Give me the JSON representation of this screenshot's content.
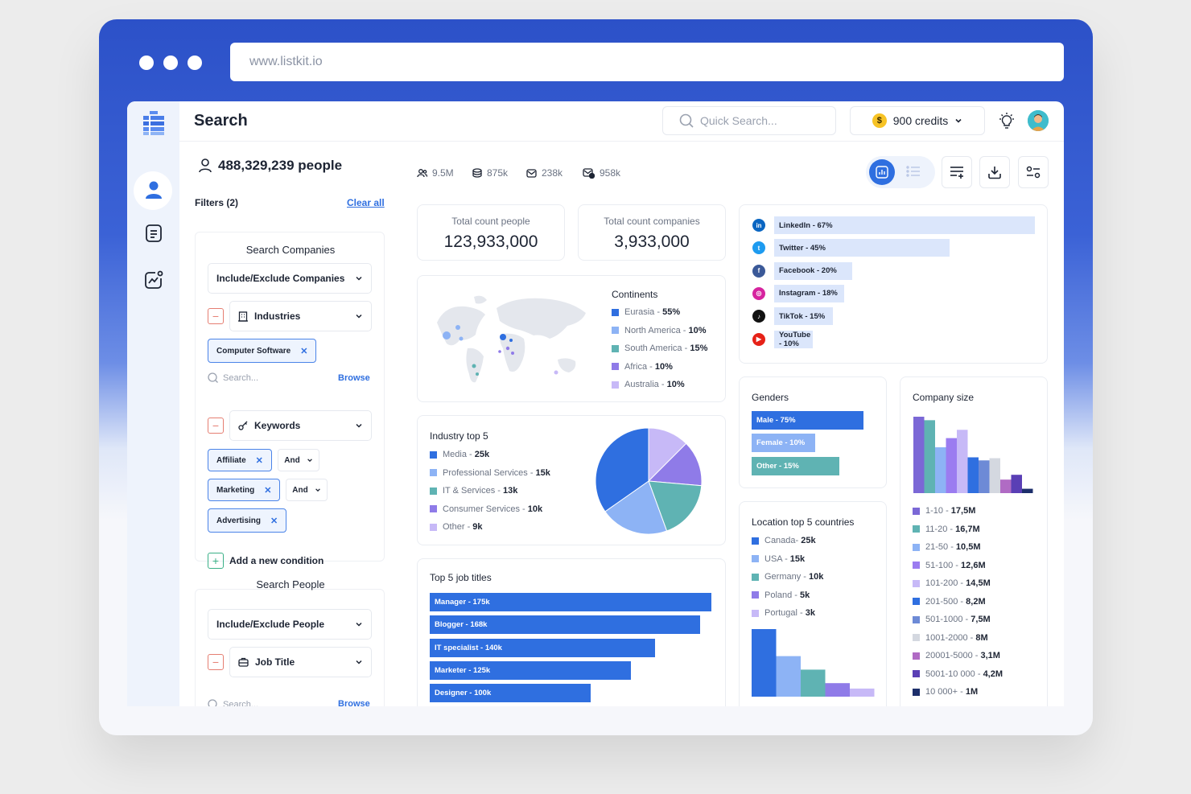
{
  "browser": {
    "url": "www.listkit.io"
  },
  "header": {
    "title": "Search",
    "quick_search_placeholder": "Quick Search...",
    "credits_label": "900 credits",
    "coin_symbol": "$"
  },
  "sidebar_icons": [
    "logo-icon",
    "person-icon",
    "list-icon",
    "analytics-icon"
  ],
  "filters": {
    "people_count": "488,329,239 people",
    "filters_label": "Filters (2)",
    "clear_all": "Clear all",
    "companies": {
      "section_title": "Search Companies",
      "include_exclude": "Include/Exclude Companies",
      "industries": "Industries",
      "industry_tag": "Computer Software",
      "search_placeholder": "Search...",
      "browse": "Browse",
      "keywords": "Keywords",
      "keyword_tags": [
        "Affiliate",
        "Marketing",
        "Advertising"
      ],
      "and_label": "And",
      "add_condition": "Add a new condition"
    },
    "people": {
      "section_title": "Search People",
      "include_exclude": "Include/Exclude People",
      "job_title": "Job Title",
      "search_placeholder": "Search...",
      "browse": "Browse"
    }
  },
  "stats": [
    "9.5M",
    "875k",
    "238k",
    "958k"
  ],
  "totals": {
    "people_label": "Total count people",
    "people_value": "123,933,000",
    "companies_label": "Total count companies",
    "companies_value": "3,933,000"
  },
  "continents": {
    "title": "Continents",
    "items": [
      {
        "name": "Eurasia",
        "value": "55%",
        "color": "#2f6fe0"
      },
      {
        "name": "North America",
        "value": "10%",
        "color": "#8db3f5"
      },
      {
        "name": "South America",
        "value": "15%",
        "color": "#5fb3b3"
      },
      {
        "name": "Africa",
        "value": "10%",
        "color": "#8f7be8"
      },
      {
        "name": "Australia",
        "value": "10%",
        "color": "#c7b9f7"
      }
    ]
  },
  "industry": {
    "title": "Industry top 5",
    "items": [
      {
        "name": "Media",
        "value": "25k",
        "num": 25,
        "color": "#2f6fe0"
      },
      {
        "name": "Professional Services",
        "value": "15k",
        "num": 15,
        "color": "#8db3f5"
      },
      {
        "name": "IT & Services",
        "value": "13k",
        "num": 13,
        "color": "#5fb3b3"
      },
      {
        "name": "Consumer Services",
        "value": "10k",
        "num": 10,
        "color": "#8f7be8"
      },
      {
        "name": "Other",
        "value": "9k",
        "num": 9,
        "color": "#c7b9f7"
      }
    ]
  },
  "jobs": {
    "title": "Top 5 job titles",
    "items": [
      {
        "label": "Manager - 175k",
        "num": 175
      },
      {
        "label": "Blogger - 168k",
        "num": 168
      },
      {
        "label": "IT specialist - 140k",
        "num": 140
      },
      {
        "label": "Marketer - 125k",
        "num": 125
      },
      {
        "label": "Designer - 100k",
        "num": 100
      }
    ]
  },
  "social": [
    {
      "label": "LinkedIn - 67%",
      "pct": 67,
      "icon": "linkedin-icon",
      "glyph": "in",
      "color": "#0a66c2"
    },
    {
      "label": "Twitter - 45%",
      "pct": 45,
      "icon": "twitter-icon",
      "glyph": "t",
      "color": "#1d9bf0"
    },
    {
      "label": "Facebook - 20%",
      "pct": 20,
      "icon": "facebook-icon",
      "glyph": "f",
      "color": "#3b5998"
    },
    {
      "label": "Instagram - 18%",
      "pct": 18,
      "icon": "instagram-icon",
      "glyph": "◎",
      "color": "#d6249f"
    },
    {
      "label": "TikTok - 15%",
      "pct": 15,
      "icon": "tiktok-icon",
      "glyph": "♪",
      "color": "#111111"
    },
    {
      "label": "YouTube - 10%",
      "pct": 10,
      "icon": "youtube-icon",
      "glyph": "▶",
      "color": "#e62117"
    }
  ],
  "genders": {
    "title": "Genders",
    "items": [
      {
        "label": "Male - 75%",
        "pct": 75,
        "color": "#2f6fe0"
      },
      {
        "label": "Female - 10%",
        "pct": 10,
        "color": "#8db3f5"
      },
      {
        "label": "Other - 15%",
        "pct": 15,
        "color": "#5fb3b3"
      }
    ]
  },
  "location": {
    "title": "Location top 5 countries",
    "items": [
      {
        "name": "Canada",
        "value": "25k",
        "num": 25,
        "color": "#2f6fe0"
      },
      {
        "name": "USA",
        "value": "15k",
        "num": 15,
        "color": "#8db3f5"
      },
      {
        "name": "Germany",
        "value": "10k",
        "num": 10,
        "color": "#5fb3b3"
      },
      {
        "name": "Poland",
        "value": "5k",
        "num": 5,
        "color": "#8f7be8"
      },
      {
        "name": "Portugal",
        "value": "3k",
        "num": 3,
        "color": "#c7b9f7"
      }
    ]
  },
  "company_size": {
    "title": "Company size",
    "items": [
      {
        "name": "1-10",
        "value": "17,5M",
        "num": 17.5,
        "color": "#7b68d6"
      },
      {
        "name": "11-20",
        "value": "16,7M",
        "num": 16.7,
        "color": "#5fb3b3"
      },
      {
        "name": "21-50",
        "value": "10,5M",
        "num": 10.5,
        "color": "#8db3f5"
      },
      {
        "name": "51-100",
        "value": "12,6M",
        "num": 12.6,
        "color": "#9b7cf0"
      },
      {
        "name": "101-200",
        "value": "14,5M",
        "num": 14.5,
        "color": "#c7b9f7"
      },
      {
        "name": "201-500",
        "value": "8,2M",
        "num": 8.2,
        "color": "#2f6fe0"
      },
      {
        "name": "501-1000",
        "value": "7,5M",
        "num": 7.5,
        "color": "#6d8ad6"
      },
      {
        "name": "1001-2000",
        "value": "8M",
        "num": 8,
        "color": "#d4d8e0"
      },
      {
        "name": "20001-5000",
        "value": "3,1M",
        "num": 3.1,
        "color": "#b06bc4"
      },
      {
        "name": "5001-10 000",
        "value": "4,2M",
        "num": 4.2,
        "color": "#5a3fb5"
      },
      {
        "name": "10 000+",
        "value": "1M",
        "num": 1,
        "color": "#1d2f6b"
      }
    ]
  }
}
